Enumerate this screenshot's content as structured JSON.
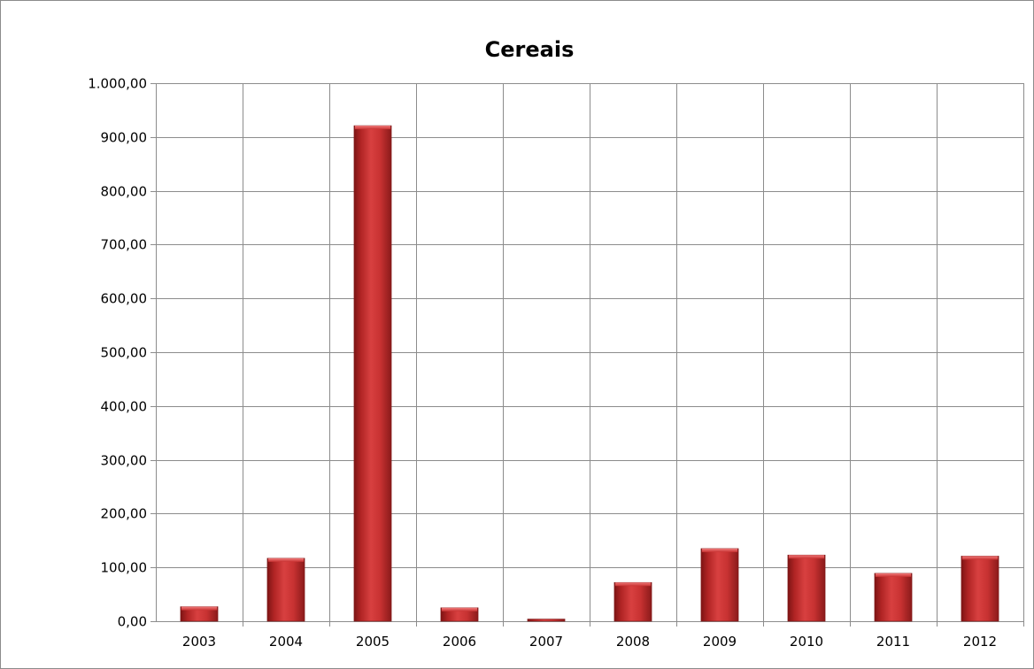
{
  "chart_data": {
    "type": "bar",
    "title": "Cereais",
    "xlabel": "",
    "ylabel": "",
    "categories": [
      "2003",
      "2004",
      "2005",
      "2006",
      "2007",
      "2008",
      "2009",
      "2010",
      "2011",
      "2012"
    ],
    "series": [
      {
        "values": [
          27,
          117,
          921,
          25,
          4,
          72,
          135,
          123,
          89,
          121
        ]
      }
    ],
    "ylim": [
      0,
      1000
    ],
    "yticks": [
      0,
      100,
      200,
      300,
      400,
      500,
      600,
      700,
      800,
      900,
      1000
    ],
    "ytick_labels": [
      "0,00",
      "100,00",
      "200,00",
      "300,00",
      "400,00",
      "500,00",
      "600,00",
      "700,00",
      "800,00",
      "900,00",
      "1.000,00"
    ],
    "grid": "both",
    "legend": "none",
    "bar_color": "#c0302f"
  }
}
